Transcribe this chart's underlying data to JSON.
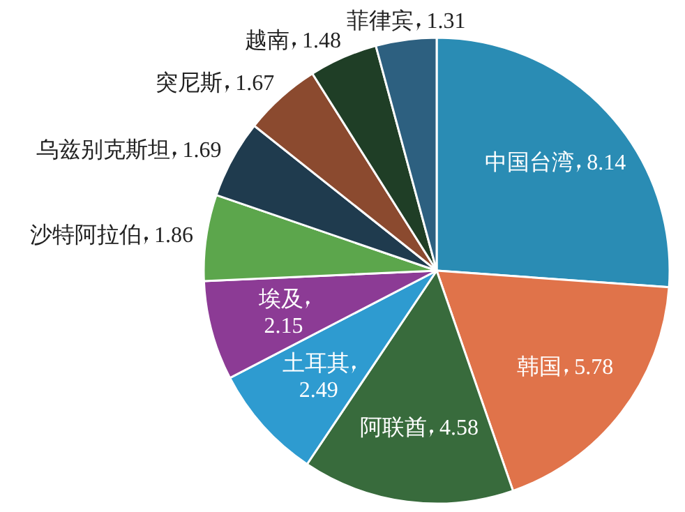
{
  "chart_data": {
    "type": "pie",
    "categories": [
      "中国台湾",
      "韩国",
      "阿联酋",
      "土耳其",
      "埃及",
      "沙特阿拉伯",
      "乌兹别克斯坦",
      "突尼斯",
      "越南",
      "菲律宾"
    ],
    "values": [
      8.14,
      5.78,
      4.58,
      2.49,
      2.15,
      1.86,
      1.69,
      1.67,
      1.48,
      1.31
    ],
    "colors": [
      "#2a8cb4",
      "#e0734a",
      "#386b3c",
      "#2e9bd0",
      "#8c3b95",
      "#5ca64c",
      "#1f3b4e",
      "#8b4a2f",
      "#1f3e26",
      "#2d6080"
    ],
    "data_labels": true,
    "legend": false
  }
}
